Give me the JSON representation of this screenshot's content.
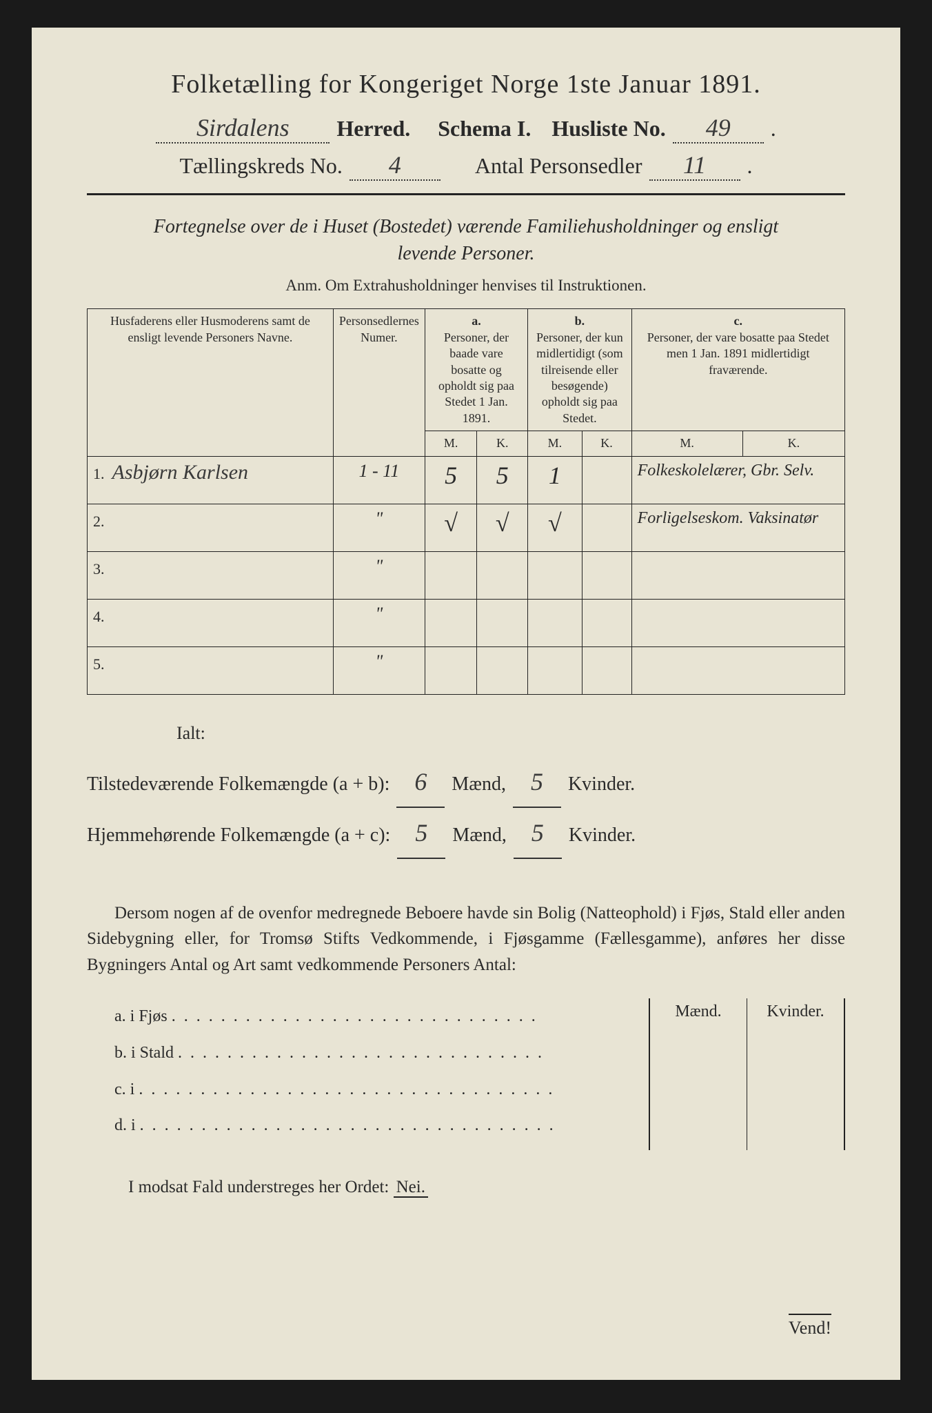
{
  "title": "Folketælling for Kongeriget Norge 1ste Januar 1891.",
  "header": {
    "herred_value": "Sirdalens",
    "herred_label": "Herred.",
    "schema_label": "Schema I.",
    "husliste_label": "Husliste No.",
    "husliste_value": "49",
    "kreds_label": "Tællingskreds No.",
    "kreds_value": "4",
    "antal_label": "Antal Personsedler",
    "antal_value": "11"
  },
  "subtitle": "Fortegnelse over de i Huset (Bostedet) værende Familiehusholdninger og ensligt levende Personer.",
  "anm": "Anm.  Om Extrahusholdninger henvises til Instruktionen.",
  "table": {
    "col1": "Husfaderens eller Husmoderens samt de ensligt levende Personers Navne.",
    "col2": "Personsedlernes Numer.",
    "col3_top": "a.",
    "col3": "Personer, der baade vare bosatte og opholdt sig paa Stedet 1 Jan. 1891.",
    "col4_top": "b.",
    "col4": "Personer, der kun midlertidigt (som tilreisende eller besøgende) opholdt sig paa Stedet.",
    "col5_top": "c.",
    "col5": "Personer, der vare bosatte paa Stedet men 1 Jan. 1891 midlertidigt fraværende.",
    "m": "M.",
    "k": "K.",
    "rows": [
      {
        "n": "1.",
        "name": "Asbjørn Karlsen",
        "num": "1 - 11",
        "am": "5",
        "ak": "5",
        "bm": "1",
        "bk": "",
        "cm": "",
        "ck": "",
        "note": "Folkeskolelærer, Gbr. Selv."
      },
      {
        "n": "2.",
        "name": "",
        "num": "\"",
        "am": "√",
        "ak": "√",
        "bm": "√",
        "bk": "",
        "cm": "",
        "ck": "",
        "note": "Forligelseskom. Vaksinatør"
      },
      {
        "n": "3.",
        "name": "",
        "num": "\"",
        "am": "",
        "ak": "",
        "bm": "",
        "bk": "",
        "cm": "",
        "ck": "",
        "note": ""
      },
      {
        "n": "4.",
        "name": "",
        "num": "\"",
        "am": "",
        "ak": "",
        "bm": "",
        "bk": "",
        "cm": "",
        "ck": "",
        "note": ""
      },
      {
        "n": "5.",
        "name": "",
        "num": "\"",
        "am": "",
        "ak": "",
        "bm": "",
        "bk": "",
        "cm": "",
        "ck": "",
        "note": ""
      }
    ]
  },
  "totals": {
    "ialt": "Ialt:",
    "line1_label": "Tilstedeværende Folkemængde (a + b):",
    "line1_m": "6",
    "line1_k": "5",
    "line2_label": "Hjemmehørende Folkemængde (a + c):",
    "line2_m": "5",
    "line2_k": "5",
    "maend": "Mænd,",
    "kvinder": "Kvinder."
  },
  "para": "Dersom nogen af de ovenfor medregnede Beboere havde sin Bolig (Natteophold) i Fjøs, Stald eller anden Sidebygning eller, for Tromsø Stifts Vedkommende, i Fjøsgamme (Fællesgamme), anføres her disse Bygningers Antal og Art samt vedkommende Personers Antal:",
  "buildings": {
    "a": "a.  i     Fjøs",
    "b": "b.  i     Stald",
    "c": "c.  i",
    "d": "d.  i",
    "maend": "Mænd.",
    "kvinder": "Kvinder."
  },
  "nei": {
    "prefix": "I modsat Fald understreges her Ordet:",
    "word": "Nei."
  },
  "vend": "Vend!"
}
